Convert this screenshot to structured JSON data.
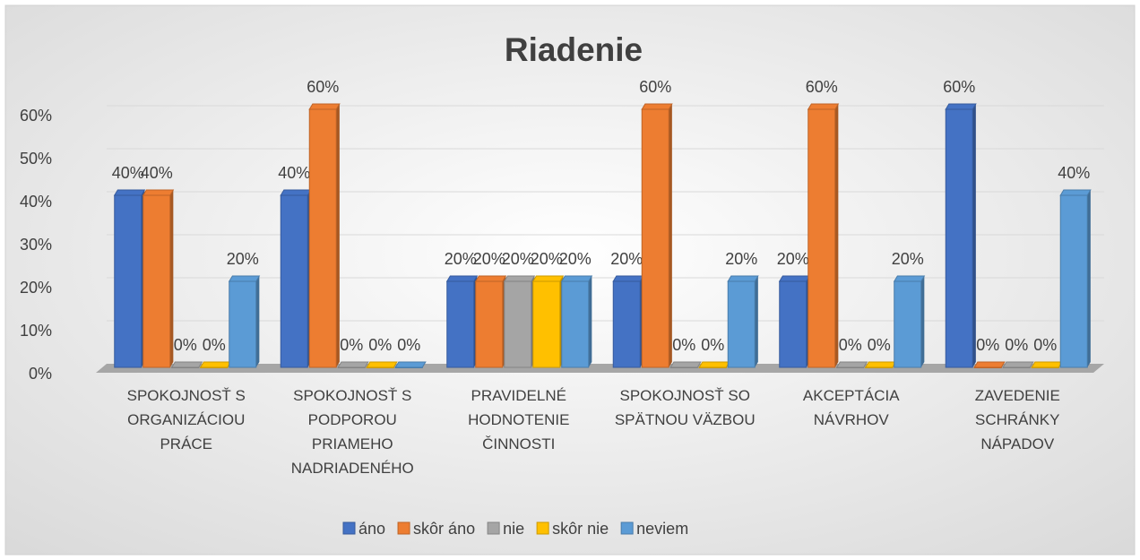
{
  "chart_data": {
    "type": "bar3d",
    "title": "Riadenie",
    "categories": [
      "SPOKOJNOSŤ S ORGANIZÁCIOU PRÁCE",
      "SPOKOJNOSŤ S PODPOROU PRIAMEHO NADRIADENÉHO",
      "PRAVIDELNÉ HODNOTENIE ČINNOSTI",
      "SPOKOJNOSŤ SO SPÄTNOU VÄZBOU",
      "AKCEPTÁCIA NÁVRHOV",
      "ZAVEDENIE SCHRÁNKY NÁPADOV"
    ],
    "series": [
      {
        "name": "áno",
        "color": "#4472c4",
        "values": [
          40,
          40,
          20,
          20,
          20,
          60
        ],
        "value_labels": [
          "40%",
          "40%",
          "20%",
          "20%",
          "20%",
          "60%"
        ]
      },
      {
        "name": "skôr áno",
        "color": "#ed7d31",
        "values": [
          40,
          60,
          20,
          60,
          60,
          0
        ],
        "value_labels": [
          "40%",
          "60%",
          "20%",
          "60%",
          "60%",
          "0%"
        ]
      },
      {
        "name": "nie",
        "color": "#a5a5a5",
        "values": [
          0,
          0,
          20,
          0,
          0,
          0
        ],
        "value_labels": [
          "0%",
          "0%",
          "20%",
          "0%",
          "0%",
          "0%"
        ]
      },
      {
        "name": "skôr nie",
        "color": "#ffc000",
        "values": [
          0,
          0,
          20,
          0,
          0,
          0
        ],
        "value_labels": [
          "0%",
          "0%",
          "20%",
          "0%",
          "0%",
          "0%"
        ]
      },
      {
        "name": "neviem",
        "color": "#5b9bd5",
        "values": [
          20,
          0,
          20,
          20,
          20,
          40
        ],
        "value_labels": [
          "20%",
          "0%",
          "20%",
          "20%",
          "20%",
          "40%"
        ]
      }
    ],
    "ylim": [
      0,
      60
    ],
    "yticks": [
      {
        "value": 0,
        "label": "0%"
      },
      {
        "value": 10,
        "label": "10%"
      },
      {
        "value": 20,
        "label": "20%"
      },
      {
        "value": 30,
        "label": "30%"
      },
      {
        "value": 40,
        "label": "40%"
      },
      {
        "value": 50,
        "label": "50%"
      },
      {
        "value": 60,
        "label": "60%"
      }
    ],
    "grid": true,
    "legend": "bottom"
  }
}
